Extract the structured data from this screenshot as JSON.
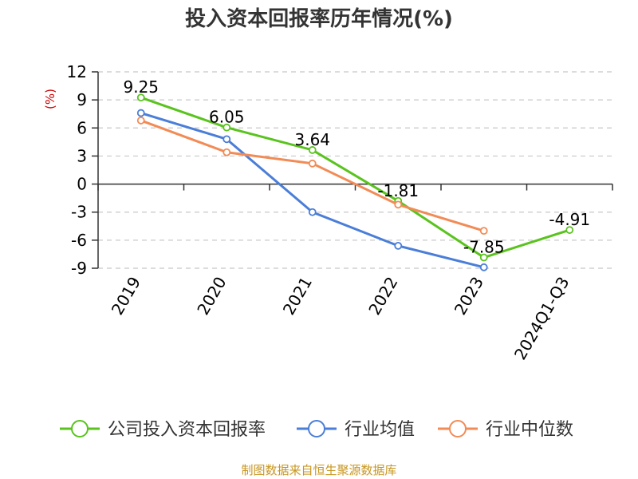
{
  "chart_data": {
    "type": "line",
    "title": "投入资本回报率历年情况(%)",
    "ylabel": "(%)",
    "xlabel": "",
    "categories": [
      "2019",
      "2020",
      "2021",
      "2022",
      "2023",
      "2024Q1-Q3"
    ],
    "ylim": [
      -9,
      12
    ],
    "yticks": [
      12,
      9,
      6,
      3,
      0,
      -3,
      -6,
      -9
    ],
    "grid": true,
    "legend_position": "bottom",
    "series": [
      {
        "name": "公司投入资本回报率",
        "color": "#5ac31e",
        "values": [
          9.25,
          6.05,
          3.64,
          -1.81,
          -7.85,
          -4.91
        ],
        "data_labels": [
          "9.25",
          "6.05",
          "3.64",
          "-1.81",
          "-7.85",
          "-4.91"
        ]
      },
      {
        "name": "行业均值",
        "color": "#4a7ed8",
        "values": [
          7.6,
          4.8,
          -3.0,
          -6.6,
          -8.9,
          null
        ]
      },
      {
        "name": "行业中位数",
        "color": "#f28b55",
        "values": [
          6.8,
          3.4,
          2.2,
          -2.2,
          -5.0,
          null
        ]
      }
    ],
    "unit_color": "#cc0000"
  },
  "source_text": "制图数据来自恒生聚源数据库",
  "source_color": "#c8961e"
}
